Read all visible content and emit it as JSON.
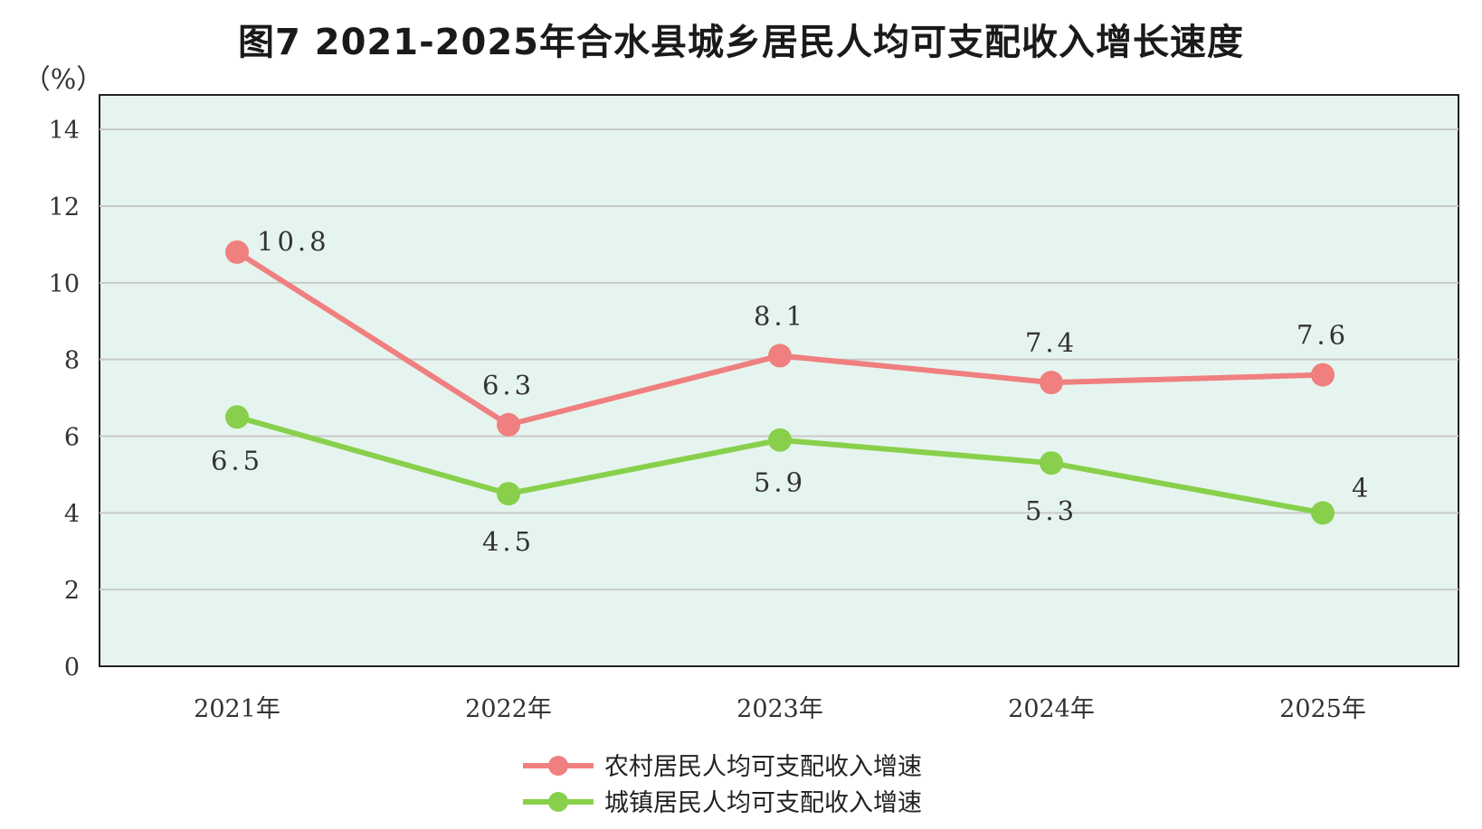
{
  "chart_data": {
    "type": "line",
    "title": "图7  2021-2025年合水县城乡居民人均可支配收入增长速度",
    "ylabel": "（%）",
    "xlabel": "",
    "categories": [
      "2021年",
      "2022年",
      "2023年",
      "2024年",
      "2025年"
    ],
    "ylim": [
      0,
      14
    ],
    "yticks": [
      "0",
      "2",
      "4",
      "6",
      "8",
      "10",
      "12",
      "14"
    ],
    "grid": true,
    "legend_position": "bottom-center",
    "plot_background": "#e6f4ef",
    "series": [
      {
        "name": "农村居民人均可支配收入增速",
        "color": "#f07f7f",
        "values": [
          10.8,
          6.3,
          8.1,
          7.4,
          7.6
        ],
        "labels": [
          "10.8",
          "6.3",
          "8.1",
          "7.4",
          "7.6"
        ]
      },
      {
        "name": "城镇居民人均可支配收入增速",
        "color": "#88d04b",
        "values": [
          6.5,
          4.5,
          5.9,
          5.3,
          4
        ],
        "labels": [
          "6.5",
          "4.5",
          "5.9",
          "5.3",
          "4"
        ]
      }
    ]
  }
}
